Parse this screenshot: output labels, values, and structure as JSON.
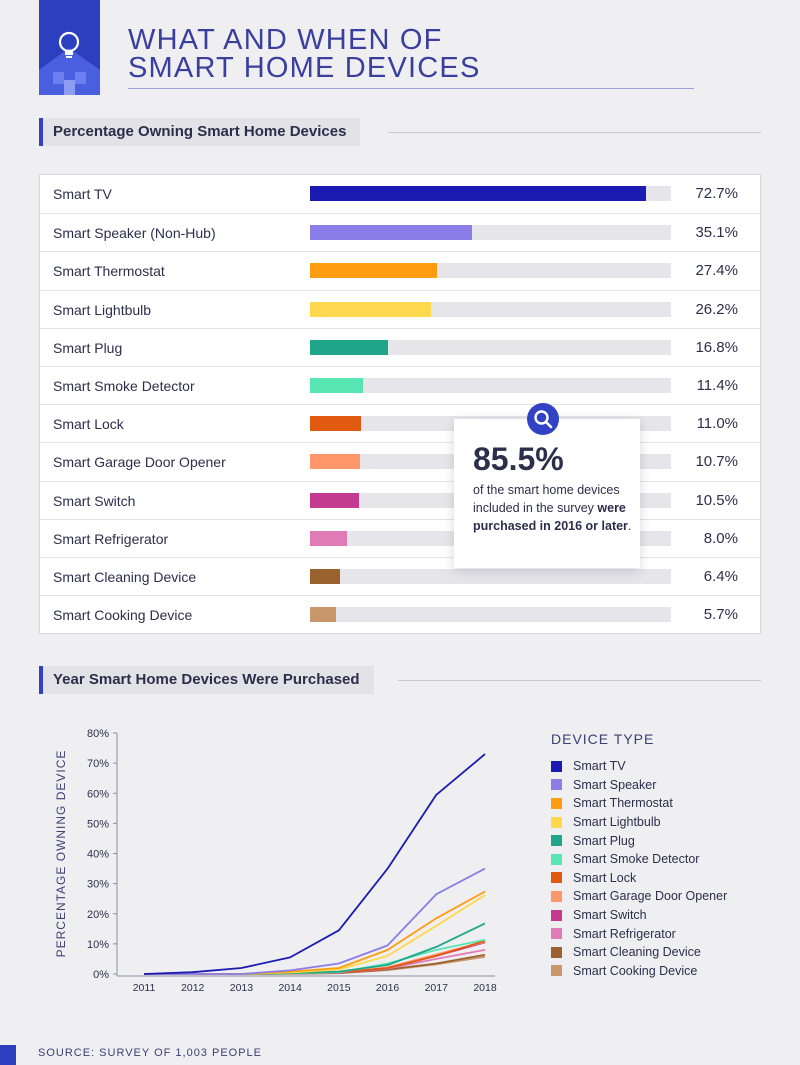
{
  "header": {
    "title": "WHAT AND WHEN OF\nSMART HOME DEVICES",
    "logo_icon": "lightbulb-house-icon"
  },
  "colors": {
    "accent": "#3242c4",
    "brand_blue": "#2c3fbf",
    "track": "#e6e6ea"
  },
  "section1": {
    "title": "Percentage Owning Smart Home Devices"
  },
  "section2": {
    "title": "Year Smart Home Devices Were Purchased"
  },
  "callout": {
    "icon": "magnifier-icon",
    "big": "85.5%",
    "text_a": "of the smart home devices included in the survey ",
    "text_b": "were purchased in 2016 or later",
    "text_c": "."
  },
  "chart_data": [
    {
      "type": "bar",
      "orientation": "horizontal",
      "xlim": [
        0,
        78
      ],
      "categories": [
        "Smart TV",
        "Smart Speaker (Non-Hub)",
        "Smart Thermostat",
        "Smart Lightbulb",
        "Smart Plug",
        "Smart Smoke Detector",
        "Smart Lock",
        "Smart Garage Door Opener",
        "Smart Switch",
        "Smart Refrigerator",
        "Smart Cleaning Device",
        "Smart Cooking Device"
      ],
      "values": [
        72.7,
        35.1,
        27.4,
        26.2,
        16.8,
        11.4,
        11.0,
        10.7,
        10.5,
        8.0,
        6.4,
        5.7
      ],
      "value_labels": [
        "72.7%",
        "35.1%",
        "27.4%",
        "26.2%",
        "16.8%",
        "11.4%",
        "11.0%",
        "10.7%",
        "10.5%",
        "8.0%",
        "6.4%",
        "5.7%"
      ],
      "colors": [
        "#1b1bb3",
        "#8a7de8",
        "#ff9c0f",
        "#ffd84d",
        "#1fa68a",
        "#57e6b3",
        "#e05a12",
        "#ff976a",
        "#c43a91",
        "#e07bb6",
        "#99622f",
        "#c9976b"
      ]
    },
    {
      "type": "line",
      "x": [
        2011,
        2012,
        2013,
        2014,
        2015,
        2016,
        2017,
        2018
      ],
      "ylabel": "PERCENTAGE OWNING DEVICE",
      "ylim": [
        0,
        80
      ],
      "yticks": [
        "0%",
        "10%",
        "20%",
        "30%",
        "40%",
        "50%",
        "60%",
        "70%",
        "80%"
      ],
      "ytick_values": [
        0,
        10,
        20,
        30,
        40,
        50,
        60,
        70,
        80
      ],
      "xticks": [
        "2011",
        "2012",
        "2013",
        "2014",
        "2015",
        "2016",
        "2017",
        "2018"
      ],
      "grid": false,
      "legend_title": "DEVICE TYPE",
      "legend_position": "right",
      "series": [
        {
          "name": "Smart TV",
          "color": "#1b1bb3",
          "values": [
            0,
            0.6,
            2,
            5.5,
            14.5,
            35,
            59.5,
            73
          ]
        },
        {
          "name": "Smart Speaker",
          "color": "#8a7de8",
          "values": [
            0,
            0,
            0,
            1.2,
            3.5,
            9.5,
            26.5,
            35
          ]
        },
        {
          "name": "Smart Thermostat",
          "color": "#ff9c0f",
          "values": [
            0,
            0,
            0,
            0.8,
            2,
            8,
            18.5,
            27.4
          ]
        },
        {
          "name": "Smart Lightbulb",
          "color": "#ffd84d",
          "values": [
            0,
            0,
            0,
            0.5,
            1.5,
            6,
            16,
            26.2
          ]
        },
        {
          "name": "Smart Plug",
          "color": "#1fa68a",
          "values": [
            0,
            0,
            0,
            0.3,
            0.8,
            3,
            9,
            16.8
          ]
        },
        {
          "name": "Smart Smoke Detector",
          "color": "#57e6b3",
          "values": [
            0,
            0,
            0,
            0.2,
            0.6,
            3.5,
            8,
            11.4
          ]
        },
        {
          "name": "Smart Lock",
          "color": "#e05a12",
          "values": [
            0,
            0,
            0,
            0.2,
            0.5,
            2,
            6,
            11
          ]
        },
        {
          "name": "Smart Garage Door Opener",
          "color": "#ff976a",
          "values": [
            0,
            0,
            0,
            0.2,
            0.5,
            2.2,
            6.5,
            10.7
          ]
        },
        {
          "name": "Smart Switch",
          "color": "#c43a91",
          "values": [
            0,
            0,
            0,
            0.2,
            0.4,
            2,
            6,
            10.5
          ]
        },
        {
          "name": "Smart Refrigerator",
          "color": "#e07bb6",
          "values": [
            0,
            0,
            0,
            0.2,
            0.4,
            1.8,
            5,
            8
          ]
        },
        {
          "name": "Smart Cleaning Device",
          "color": "#99622f",
          "values": [
            0,
            0,
            0,
            0.1,
            0.3,
            1.5,
            3.5,
            6.4
          ]
        },
        {
          "name": "Smart Cooking Device",
          "color": "#c9976b",
          "values": [
            0,
            0,
            0,
            0.1,
            0.3,
            1.3,
            3.2,
            5.7
          ]
        }
      ]
    }
  ],
  "footer": {
    "source": "SOURCE: SURVEY OF 1,003 PEOPLE"
  }
}
